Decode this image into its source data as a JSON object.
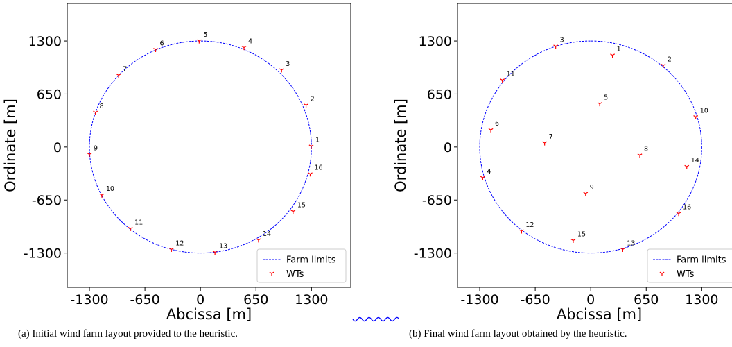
{
  "palette": {
    "farm_limits": "#0000ff",
    "wts": "#ff0000",
    "squiggle": "#0000ff"
  },
  "captions": {
    "a": "(a) Initial wind farm layout provided to the heuristic.",
    "b": "(b) Final wind farm layout obtained by the heuristic."
  },
  "chart_data": [
    {
      "type": "scatter",
      "xlabel": "Abcissa [m]",
      "ylabel": "Ordinate [m]",
      "xlim": [
        -1560,
        1760
      ],
      "ylim": [
        -1720,
        1760
      ],
      "xticks": [
        -1300,
        -650,
        0,
        650,
        1300
      ],
      "yticks": [
        1300,
        650,
        0,
        -650,
        -1300
      ],
      "grid": false,
      "legend_position": "lower-right",
      "boundary": {
        "name": "Farm limits",
        "shape": "circle",
        "center": [
          0,
          0
        ],
        "radius": 1300
      },
      "series": [
        {
          "name": "WTs",
          "points": [
            {
              "id": "1",
              "x": 1297,
              "y": 10
            },
            {
              "id": "2",
              "x": 1237,
              "y": 513
            },
            {
              "id": "3",
              "x": 950,
              "y": 945
            },
            {
              "id": "4",
              "x": 510,
              "y": 1220
            },
            {
              "id": "5",
              "x": -15,
              "y": 1300
            },
            {
              "id": "6",
              "x": -525,
              "y": 1195
            },
            {
              "id": "7",
              "x": -958,
              "y": 880
            },
            {
              "id": "8",
              "x": -1230,
              "y": 425
            },
            {
              "id": "9",
              "x": -1300,
              "y": -90
            },
            {
              "id": "10",
              "x": -1155,
              "y": -590
            },
            {
              "id": "11",
              "x": -820,
              "y": -1000
            },
            {
              "id": "12",
              "x": -340,
              "y": -1255
            },
            {
              "id": "13",
              "x": 170,
              "y": -1290
            },
            {
              "id": "14",
              "x": 680,
              "y": -1140
            },
            {
              "id": "15",
              "x": 1085,
              "y": -790
            },
            {
              "id": "16",
              "x": 1285,
              "y": -330
            }
          ]
        }
      ]
    },
    {
      "type": "scatter",
      "xlabel": "Abcissa [m]",
      "ylabel": "Ordinate [m]",
      "xlim": [
        -1560,
        1760
      ],
      "ylim": [
        -1720,
        1760
      ],
      "xticks": [
        -1300,
        -650,
        0,
        650,
        1300
      ],
      "yticks": [
        1300,
        650,
        0,
        -650,
        -1300
      ],
      "grid": false,
      "legend_position": "lower-right",
      "boundary": {
        "name": "Farm limits",
        "shape": "circle",
        "center": [
          0,
          0
        ],
        "radius": 1300
      },
      "series": [
        {
          "name": "WTs",
          "points": [
            {
              "id": "1",
              "x": 255,
              "y": 1125
            },
            {
              "id": "2",
              "x": 850,
              "y": 1000
            },
            {
              "id": "3",
              "x": -410,
              "y": 1235
            },
            {
              "id": "4",
              "x": -1265,
              "y": -375
            },
            {
              "id": "5",
              "x": 105,
              "y": 530
            },
            {
              "id": "6",
              "x": -1170,
              "y": 210
            },
            {
              "id": "7",
              "x": -540,
              "y": 50
            },
            {
              "id": "8",
              "x": 575,
              "y": -100
            },
            {
              "id": "9",
              "x": -60,
              "y": -570
            },
            {
              "id": "10",
              "x": 1230,
              "y": 370
            },
            {
              "id": "11",
              "x": -1035,
              "y": 820
            },
            {
              "id": "12",
              "x": -810,
              "y": -1030
            },
            {
              "id": "13",
              "x": 375,
              "y": -1255
            },
            {
              "id": "14",
              "x": 1125,
              "y": -240
            },
            {
              "id": "15",
              "x": -205,
              "y": -1145
            },
            {
              "id": "16",
              "x": 1030,
              "y": -815
            }
          ]
        }
      ]
    }
  ]
}
